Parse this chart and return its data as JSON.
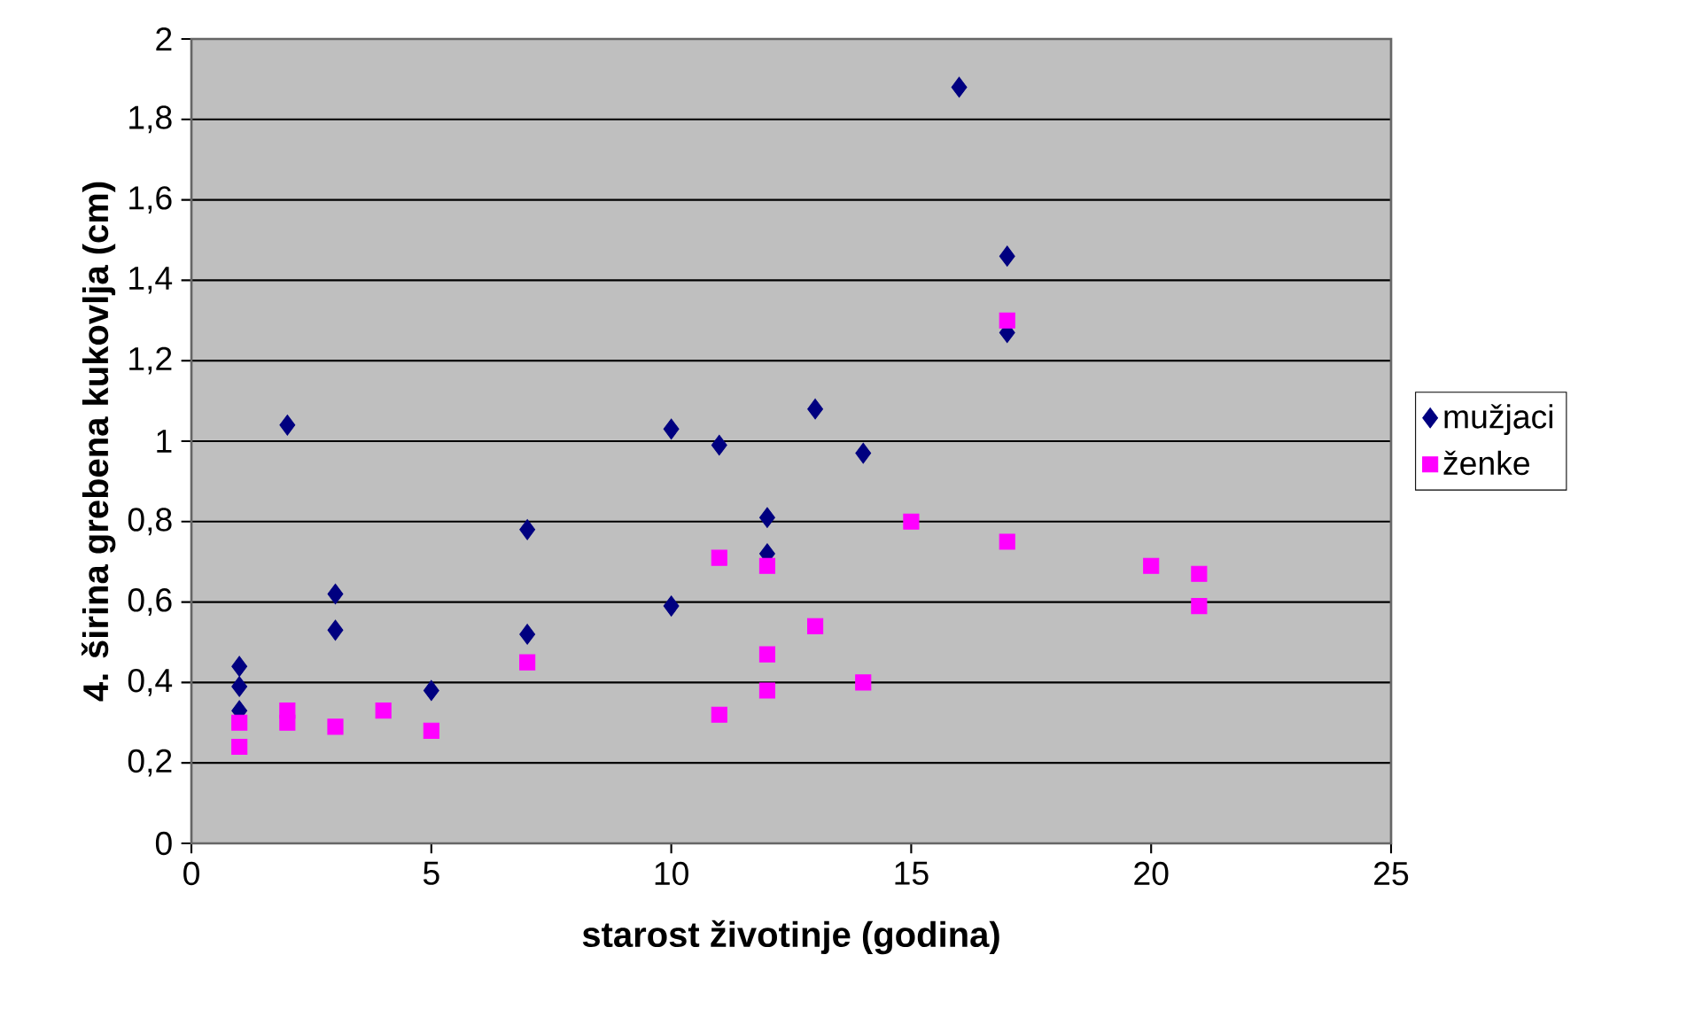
{
  "chart_data": {
    "type": "scatter",
    "xlabel": "starost životinje (godina)",
    "ylabel": "4. širina grebena kukovlja (cm)",
    "xlim": [
      0,
      25
    ],
    "xticks": [
      0,
      5,
      10,
      15,
      20,
      25
    ],
    "ylim": [
      0,
      2
    ],
    "yticks": [
      0,
      {
        "value": 0.2,
        "label": "0,2"
      },
      {
        "value": 0.4,
        "label": "0,4"
      },
      {
        "value": 0.6,
        "label": "0,6"
      },
      {
        "value": 0.8,
        "label": "0,8"
      },
      1,
      {
        "value": 1.2,
        "label": "1,2"
      },
      {
        "value": 1.4,
        "label": "1,4"
      },
      {
        "value": 1.6,
        "label": "1,6"
      },
      {
        "value": 1.8,
        "label": "1,8"
      },
      2
    ],
    "grid": "y",
    "legend": "right",
    "series": [
      {
        "name": "mužjaci",
        "color": "#000080",
        "marker": "diamond",
        "x": [
          1,
          1,
          1,
          2,
          3,
          3,
          5,
          7,
          7,
          10,
          10,
          11,
          12,
          12,
          13,
          14,
          16,
          17,
          17
        ],
        "values": [
          0.44,
          0.39,
          0.33,
          1.04,
          0.62,
          0.53,
          0.38,
          0.78,
          0.52,
          1.03,
          0.59,
          0.99,
          0.81,
          0.72,
          1.08,
          0.97,
          1.88,
          1.46,
          1.27
        ]
      },
      {
        "name": "ženke",
        "color": "#ff00ff",
        "marker": "square",
        "x": [
          1,
          1,
          2,
          2,
          3,
          4,
          5,
          7,
          11,
          11,
          12,
          12,
          12,
          13,
          14,
          15,
          17,
          17,
          20,
          21,
          21
        ],
        "values": [
          0.3,
          0.24,
          0.33,
          0.3,
          0.29,
          0.33,
          0.28,
          0.45,
          0.71,
          0.32,
          0.69,
          0.47,
          0.38,
          0.54,
          0.4,
          0.8,
          1.3,
          0.75,
          0.69,
          0.67,
          0.59
        ]
      }
    ]
  }
}
